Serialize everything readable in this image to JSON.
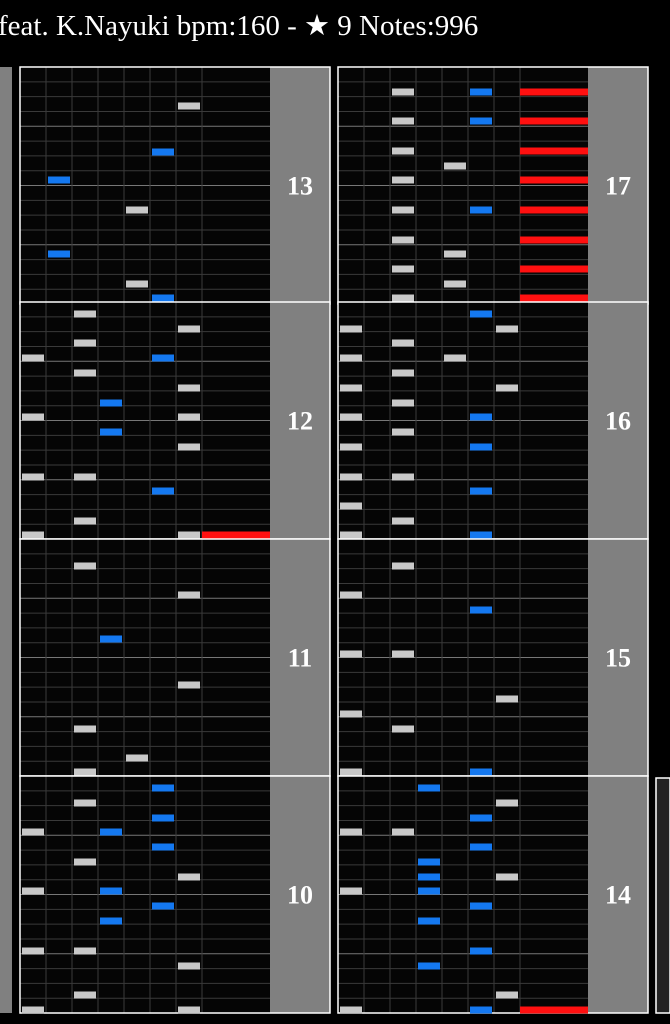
{
  "header": {
    "title": "feat. K.Nayuki bpm:160 - ★ 9  Notes:996"
  },
  "measures": [
    {
      "number": 13
    },
    {
      "number": 12
    },
    {
      "number": 11
    },
    {
      "number": 10
    },
    {
      "number": 17
    },
    {
      "number": 16
    },
    {
      "number": 15
    },
    {
      "number": 14
    }
  ]
}
